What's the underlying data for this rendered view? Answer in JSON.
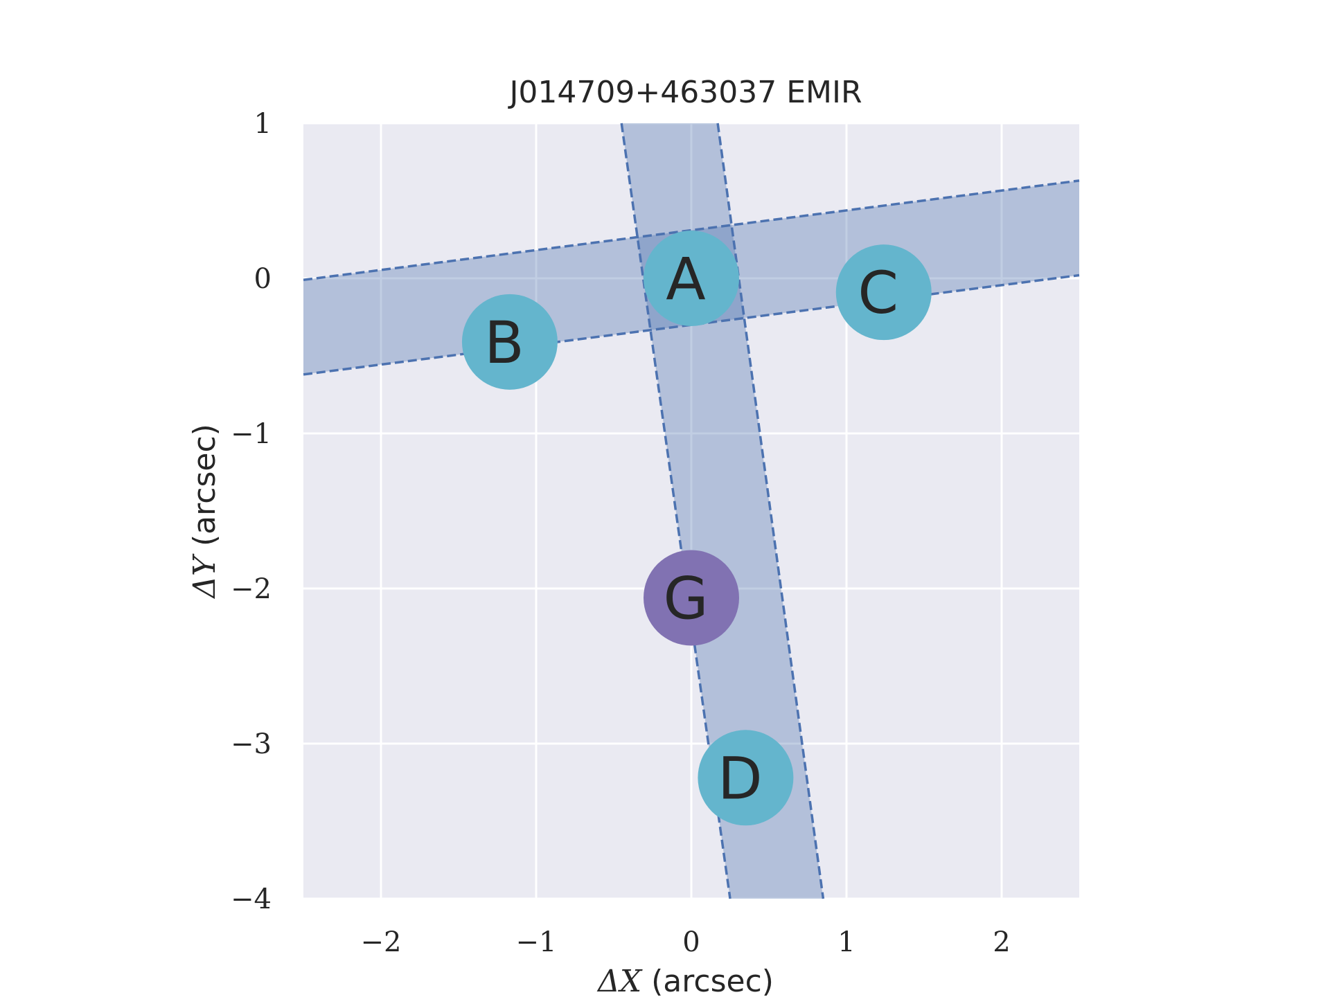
{
  "chart_data": {
    "type": "scatter",
    "title": "J014709+463037 EMIR",
    "xlabel": {
      "symbol": "ΔX",
      "unit": " (arcsec)"
    },
    "ylabel": {
      "symbol": "ΔY",
      "unit": " (arcsec)"
    },
    "xlim": [
      -2.5,
      2.5
    ],
    "ylim": [
      -4,
      1
    ],
    "xticks": [
      -2,
      -1,
      0,
      1,
      2
    ],
    "xtick_labels": [
      "−2",
      "−1",
      "0",
      "1",
      "2"
    ],
    "yticks": [
      1,
      0,
      -1,
      -2,
      -3,
      -4
    ],
    "ytick_labels": [
      "1",
      "0",
      "−1",
      "−2",
      "−3",
      "−4"
    ],
    "grid": true,
    "points": [
      {
        "label": "A",
        "x": 0.0,
        "y": 0.0,
        "color": "#64b5cd"
      },
      {
        "label": "B",
        "x": -1.17,
        "y": -0.41,
        "color": "#64b5cd"
      },
      {
        "label": "C",
        "x": 1.24,
        "y": -0.09,
        "color": "#64b5cd"
      },
      {
        "label": "G",
        "x": 0.0,
        "y": -2.06,
        "color": "#8172b2"
      },
      {
        "label": "D",
        "x": 0.35,
        "y": -3.22,
        "color": "#64b5cd"
      }
    ],
    "slits": [
      {
        "edge1": [
          [
            -2.5,
            -0.01
          ],
          [
            2.5,
            0.63
          ]
        ],
        "edge2": [
          [
            -2.5,
            -0.62
          ],
          [
            2.5,
            0.02
          ]
        ]
      },
      {
        "edge1": [
          [
            -0.45,
            1.0
          ],
          [
            0.25,
            -4.0
          ]
        ],
        "edge2": [
          [
            0.17,
            1.0
          ],
          [
            0.85,
            -4.0
          ]
        ]
      }
    ],
    "colors": {
      "background": "#eaeaf2",
      "grid": "#ffffff",
      "slit_fill": "#4c72b0",
      "slit_edge": "#4c72b0"
    }
  }
}
